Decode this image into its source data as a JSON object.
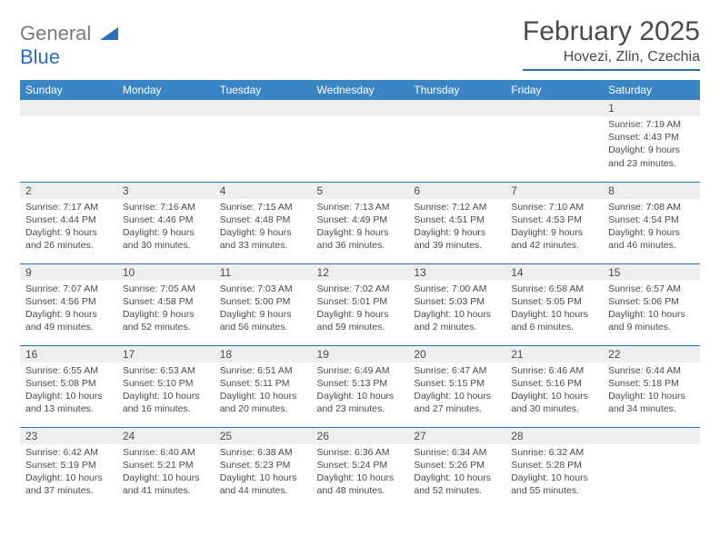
{
  "logo": {
    "line1": "General",
    "line2": "Blue"
  },
  "title": "February 2025",
  "location": "Hovezi, Zlin, Czechia",
  "days_of_week": [
    "Sunday",
    "Monday",
    "Tuesday",
    "Wednesday",
    "Thursday",
    "Friday",
    "Saturday"
  ],
  "colors": {
    "header_bg": "#3b85c4",
    "header_text": "#ffffff",
    "daynum_bg": "#eceeef",
    "border": "#2d6fb0",
    "text": "#4a4a4a",
    "logo_gray": "#7a7a7a",
    "logo_blue": "#2a6fb5"
  },
  "weeks": [
    [
      {
        "n": "",
        "sr": "",
        "ss": "",
        "dl": ""
      },
      {
        "n": "",
        "sr": "",
        "ss": "",
        "dl": ""
      },
      {
        "n": "",
        "sr": "",
        "ss": "",
        "dl": ""
      },
      {
        "n": "",
        "sr": "",
        "ss": "",
        "dl": ""
      },
      {
        "n": "",
        "sr": "",
        "ss": "",
        "dl": ""
      },
      {
        "n": "",
        "sr": "",
        "ss": "",
        "dl": ""
      },
      {
        "n": "1",
        "sr": "7:19 AM",
        "ss": "4:43 PM",
        "dl": "9 hours and 23 minutes."
      }
    ],
    [
      {
        "n": "2",
        "sr": "7:17 AM",
        "ss": "4:44 PM",
        "dl": "9 hours and 26 minutes."
      },
      {
        "n": "3",
        "sr": "7:16 AM",
        "ss": "4:46 PM",
        "dl": "9 hours and 30 minutes."
      },
      {
        "n": "4",
        "sr": "7:15 AM",
        "ss": "4:48 PM",
        "dl": "9 hours and 33 minutes."
      },
      {
        "n": "5",
        "sr": "7:13 AM",
        "ss": "4:49 PM",
        "dl": "9 hours and 36 minutes."
      },
      {
        "n": "6",
        "sr": "7:12 AM",
        "ss": "4:51 PM",
        "dl": "9 hours and 39 minutes."
      },
      {
        "n": "7",
        "sr": "7:10 AM",
        "ss": "4:53 PM",
        "dl": "9 hours and 42 minutes."
      },
      {
        "n": "8",
        "sr": "7:08 AM",
        "ss": "4:54 PM",
        "dl": "9 hours and 46 minutes."
      }
    ],
    [
      {
        "n": "9",
        "sr": "7:07 AM",
        "ss": "4:56 PM",
        "dl": "9 hours and 49 minutes."
      },
      {
        "n": "10",
        "sr": "7:05 AM",
        "ss": "4:58 PM",
        "dl": "9 hours and 52 minutes."
      },
      {
        "n": "11",
        "sr": "7:03 AM",
        "ss": "5:00 PM",
        "dl": "9 hours and 56 minutes."
      },
      {
        "n": "12",
        "sr": "7:02 AM",
        "ss": "5:01 PM",
        "dl": "9 hours and 59 minutes."
      },
      {
        "n": "13",
        "sr": "7:00 AM",
        "ss": "5:03 PM",
        "dl": "10 hours and 2 minutes."
      },
      {
        "n": "14",
        "sr": "6:58 AM",
        "ss": "5:05 PM",
        "dl": "10 hours and 6 minutes."
      },
      {
        "n": "15",
        "sr": "6:57 AM",
        "ss": "5:06 PM",
        "dl": "10 hours and 9 minutes."
      }
    ],
    [
      {
        "n": "16",
        "sr": "6:55 AM",
        "ss": "5:08 PM",
        "dl": "10 hours and 13 minutes."
      },
      {
        "n": "17",
        "sr": "6:53 AM",
        "ss": "5:10 PM",
        "dl": "10 hours and 16 minutes."
      },
      {
        "n": "18",
        "sr": "6:51 AM",
        "ss": "5:11 PM",
        "dl": "10 hours and 20 minutes."
      },
      {
        "n": "19",
        "sr": "6:49 AM",
        "ss": "5:13 PM",
        "dl": "10 hours and 23 minutes."
      },
      {
        "n": "20",
        "sr": "6:47 AM",
        "ss": "5:15 PM",
        "dl": "10 hours and 27 minutes."
      },
      {
        "n": "21",
        "sr": "6:46 AM",
        "ss": "5:16 PM",
        "dl": "10 hours and 30 minutes."
      },
      {
        "n": "22",
        "sr": "6:44 AM",
        "ss": "5:18 PM",
        "dl": "10 hours and 34 minutes."
      }
    ],
    [
      {
        "n": "23",
        "sr": "6:42 AM",
        "ss": "5:19 PM",
        "dl": "10 hours and 37 minutes."
      },
      {
        "n": "24",
        "sr": "6:40 AM",
        "ss": "5:21 PM",
        "dl": "10 hours and 41 minutes."
      },
      {
        "n": "25",
        "sr": "6:38 AM",
        "ss": "5:23 PM",
        "dl": "10 hours and 44 minutes."
      },
      {
        "n": "26",
        "sr": "6:36 AM",
        "ss": "5:24 PM",
        "dl": "10 hours and 48 minutes."
      },
      {
        "n": "27",
        "sr": "6:34 AM",
        "ss": "5:26 PM",
        "dl": "10 hours and 52 minutes."
      },
      {
        "n": "28",
        "sr": "6:32 AM",
        "ss": "5:28 PM",
        "dl": "10 hours and 55 minutes."
      },
      {
        "n": "",
        "sr": "",
        "ss": "",
        "dl": ""
      }
    ]
  ],
  "labels": {
    "sunrise": "Sunrise:",
    "sunset": "Sunset:",
    "daylight": "Daylight:"
  }
}
